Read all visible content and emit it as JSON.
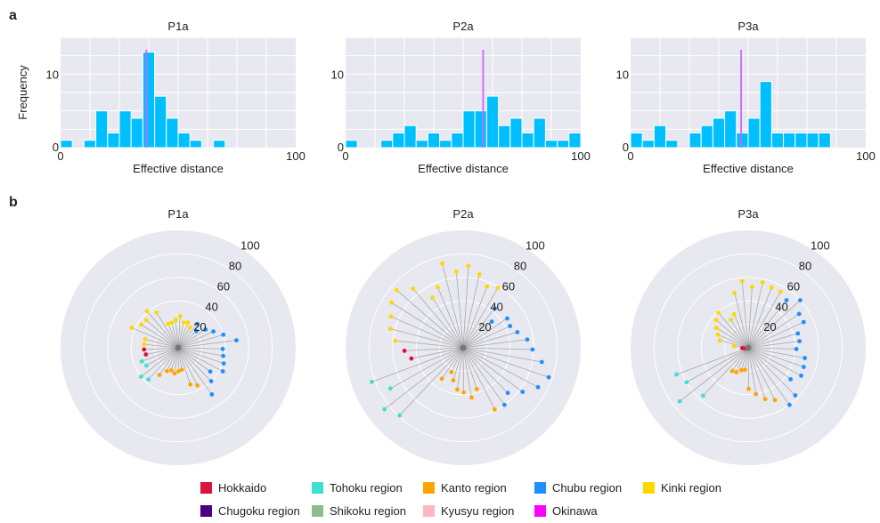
{
  "panel_labels": {
    "a": "a",
    "b": "b"
  },
  "chart_data": [
    {
      "type": "bar",
      "title": "P1a",
      "xlabel": "Effective distance",
      "ylabel": "Frequency",
      "xlim": [
        0,
        100
      ],
      "ylim": [
        0,
        15
      ],
      "xticks": [
        "0",
        "100"
      ],
      "yticks": [
        "0",
        "10"
      ],
      "bin_width": 5,
      "color": "#00bfff",
      "marker_color": "#cc66ff",
      "marker_x": 36.5,
      "bins": [
        [
          0,
          1
        ],
        [
          10,
          1
        ],
        [
          15,
          5
        ],
        [
          20,
          2
        ],
        [
          25,
          5
        ],
        [
          30,
          4
        ],
        [
          35,
          13
        ],
        [
          40,
          7
        ],
        [
          45,
          4
        ],
        [
          50,
          2
        ],
        [
          55,
          1
        ],
        [
          65,
          1
        ]
      ]
    },
    {
      "type": "bar",
      "title": "P2a",
      "xlabel": "Effective distance",
      "ylabel": "",
      "xlim": [
        0,
        100
      ],
      "ylim": [
        0,
        15
      ],
      "xticks": [
        "0",
        "100"
      ],
      "yticks": [
        "0",
        "10"
      ],
      "bin_width": 5,
      "color": "#00bfff",
      "marker_color": "#cc66ff",
      "marker_x": 58.5,
      "bins": [
        [
          0,
          1
        ],
        [
          15,
          1
        ],
        [
          20,
          2
        ],
        [
          25,
          3
        ],
        [
          30,
          1
        ],
        [
          35,
          2
        ],
        [
          40,
          1
        ],
        [
          45,
          2
        ],
        [
          50,
          5
        ],
        [
          55,
          5
        ],
        [
          60,
          7
        ],
        [
          65,
          3
        ],
        [
          70,
          4
        ],
        [
          75,
          2
        ],
        [
          80,
          4
        ],
        [
          85,
          1
        ],
        [
          90,
          1
        ],
        [
          95,
          2
        ]
      ]
    },
    {
      "type": "bar",
      "title": "P3a",
      "xlabel": "Effective distance",
      "ylabel": "",
      "xlim": [
        0,
        100
      ],
      "ylim": [
        0,
        15
      ],
      "xticks": [
        "0",
        "100"
      ],
      "yticks": [
        "0",
        "10"
      ],
      "bin_width": 5,
      "color": "#00bfff",
      "marker_color": "#cc66ff",
      "marker_x": 47,
      "bins": [
        [
          0,
          2
        ],
        [
          5,
          1
        ],
        [
          10,
          3
        ],
        [
          15,
          1
        ],
        [
          25,
          2
        ],
        [
          30,
          3
        ],
        [
          35,
          4
        ],
        [
          40,
          5
        ],
        [
          45,
          2
        ],
        [
          50,
          4
        ],
        [
          55,
          9
        ],
        [
          60,
          2
        ],
        [
          65,
          2
        ],
        [
          70,
          2
        ],
        [
          75,
          2
        ],
        [
          80,
          2
        ]
      ]
    },
    {
      "type": "scatter",
      "subtype": "polar",
      "title": "P1a",
      "rlim": [
        0,
        100
      ],
      "rticks": [
        "20",
        "40",
        "60",
        "80",
        "100"
      ],
      "points": [
        [
          0,
          20,
          4,
          6
        ],
        [
          1,
          23,
          4,
          6
        ],
        [
          2,
          22,
          4,
          6
        ],
        [
          3,
          27,
          4,
          6
        ],
        [
          4,
          24,
          4,
          6
        ],
        [
          5,
          22,
          4,
          6
        ],
        [
          6,
          22,
          4,
          6
        ],
        [
          7,
          35,
          4,
          6
        ],
        [
          8,
          41,
          4,
          6
        ],
        [
          9,
          36,
          4,
          6
        ],
        [
          10,
          37,
          4,
          6
        ],
        [
          11,
          43,
          4,
          6
        ],
        [
          12,
          29,
          4,
          6
        ],
        [
          13,
          29,
          4,
          6
        ],
        [
          14,
          29,
          0,
          6
        ],
        [
          15,
          28,
          0,
          6
        ],
        [
          16,
          33,
          1,
          3
        ],
        [
          17,
          31,
          1,
          3
        ],
        [
          18,
          40,
          1,
          3
        ],
        [
          19,
          37,
          1,
          3
        ],
        [
          20,
          28,
          2,
          4
        ],
        [
          21,
          22,
          2,
          4
        ],
        [
          22,
          20,
          2,
          4
        ],
        [
          23,
          22,
          2,
          4
        ],
        [
          24,
          20,
          2,
          4
        ],
        [
          25,
          19,
          2,
          4
        ],
        [
          26,
          33,
          2,
          4
        ],
        [
          27,
          36,
          2,
          4
        ],
        [
          28,
          49,
          3,
          5
        ],
        [
          29,
          40,
          3,
          5
        ],
        [
          30,
          34,
          3,
          5
        ],
        [
          31,
          43,
          3,
          5
        ],
        [
          32,
          41,
          3,
          5
        ],
        [
          33,
          39,
          3,
          5
        ],
        [
          34,
          38,
          3,
          5
        ],
        [
          35,
          50,
          3,
          5
        ],
        [
          36,
          40,
          3,
          5
        ],
        [
          37,
          33,
          3,
          5
        ],
        [
          38,
          28,
          3,
          5
        ],
        [
          39,
          21,
          3,
          5
        ],
        [
          40,
          26,
          3,
          5
        ]
      ]
    },
    {
      "type": "scatter",
      "subtype": "polar",
      "title": "P2a",
      "rlim": [
        0,
        100
      ],
      "rticks": [
        "20",
        "40",
        "60",
        "80",
        "100"
      ],
      "points": [
        [
          0,
          59,
          4,
          6
        ],
        [
          1,
          56,
          4,
          6
        ],
        [
          2,
          64,
          4,
          6
        ],
        [
          3,
          70,
          4,
          6
        ],
        [
          4,
          65,
          4,
          6
        ],
        [
          5,
          74,
          4,
          6
        ],
        [
          6,
          56,
          4,
          6
        ],
        [
          7,
          50,
          4,
          6
        ],
        [
          8,
          66,
          4,
          6
        ],
        [
          9,
          75,
          4,
          6
        ],
        [
          10,
          72,
          4,
          6
        ],
        [
          11,
          67,
          4,
          6
        ],
        [
          12,
          64,
          4,
          6
        ],
        [
          13,
          58,
          4,
          6
        ],
        [
          14,
          50,
          0,
          6
        ],
        [
          15,
          45,
          0,
          6
        ],
        [
          16,
          83,
          1,
          3
        ],
        [
          17,
          71,
          1,
          3
        ],
        [
          18,
          85,
          1,
          3
        ],
        [
          19,
          79,
          1,
          3
        ],
        [
          20,
          32,
          2,
          4
        ],
        [
          21,
          23,
          2,
          4
        ],
        [
          22,
          29,
          2,
          4
        ],
        [
          23,
          36,
          2,
          4
        ],
        [
          24,
          38,
          2,
          4
        ],
        [
          25,
          43,
          2,
          4
        ],
        [
          26,
          37,
          2,
          4
        ],
        [
          27,
          59,
          2,
          4
        ],
        [
          28,
          60,
          3,
          5
        ],
        [
          29,
          54,
          3,
          5
        ],
        [
          30,
          63,
          3,
          5
        ],
        [
          31,
          72,
          3,
          5
        ],
        [
          32,
          77,
          3,
          5
        ],
        [
          33,
          68,
          3,
          5
        ],
        [
          34,
          59,
          3,
          5
        ],
        [
          35,
          55,
          3,
          5
        ],
        [
          36,
          48,
          3,
          5
        ],
        [
          37,
          44,
          3,
          5
        ],
        [
          38,
          45,
          3,
          5
        ],
        [
          39,
          33,
          3,
          5
        ],
        [
          40,
          43,
          3,
          5
        ]
      ]
    },
    {
      "type": "scatter",
      "subtype": "polar",
      "title": "P3a",
      "rlim": [
        0,
        100
      ],
      "rticks": [
        "20",
        "40",
        "60",
        "80",
        "100"
      ],
      "points": [
        [
          0,
          55,
          4,
          6
        ],
        [
          1,
          55,
          4,
          6
        ],
        [
          2,
          57,
          4,
          6
        ],
        [
          3,
          52,
          4,
          6
        ],
        [
          4,
          57,
          4,
          6
        ],
        [
          5,
          48,
          4,
          6
        ],
        [
          6,
          31,
          4,
          6
        ],
        [
          7,
          28,
          4,
          6
        ],
        [
          8,
          39,
          4,
          6
        ],
        [
          9,
          36,
          4,
          6
        ],
        [
          10,
          32,
          4,
          6
        ],
        [
          11,
          28,
          4,
          6
        ],
        [
          12,
          25,
          4,
          6
        ],
        [
          13,
          12,
          4,
          6
        ],
        [
          14,
          5,
          0,
          6
        ],
        [
          15,
          3,
          0,
          6
        ],
        [
          16,
          65,
          1,
          3
        ],
        [
          17,
          60,
          1,
          3
        ],
        [
          18,
          74,
          1,
          3
        ],
        [
          19,
          56,
          1,
          3
        ],
        [
          20,
          24,
          2,
          4
        ],
        [
          21,
          23,
          2,
          4
        ],
        [
          22,
          20,
          2,
          4
        ],
        [
          23,
          19,
          2,
          4
        ],
        [
          24,
          35,
          2,
          4
        ],
        [
          25,
          40,
          2,
          4
        ],
        [
          26,
          46,
          2,
          4
        ],
        [
          27,
          50,
          2,
          4
        ],
        [
          28,
          60,
          3,
          5
        ],
        [
          29,
          57,
          3,
          5
        ],
        [
          30,
          45,
          3,
          5
        ],
        [
          31,
          51,
          3,
          5
        ],
        [
          32,
          50,
          3,
          5
        ],
        [
          33,
          49,
          3,
          5
        ],
        [
          34,
          41,
          3,
          5
        ],
        [
          35,
          44,
          3,
          5
        ],
        [
          36,
          44,
          3,
          5
        ],
        [
          37,
          52,
          3,
          5
        ],
        [
          38,
          52,
          3,
          5
        ],
        [
          39,
          60,
          3,
          5
        ],
        [
          40,
          52,
          3,
          5
        ]
      ]
    }
  ],
  "legend": [
    {
      "label": "Hokkaido",
      "color": "#dc143c"
    },
    {
      "label": "Tohoku region",
      "color": "#40e0d0"
    },
    {
      "label": "Kanto region",
      "color": "#ffa500"
    },
    {
      "label": "Chubu region",
      "color": "#1e90ff"
    },
    {
      "label": "Kinki region",
      "color": "#ffd700"
    },
    {
      "label": "Chugoku region",
      "color": "#4b0082"
    },
    {
      "label": "Shikoku region",
      "color": "#8fbc8f"
    },
    {
      "label": "Kyusyu region",
      "color": "#ffb6c1"
    },
    {
      "label": "Okinawa",
      "color": "#ff00ff"
    }
  ]
}
